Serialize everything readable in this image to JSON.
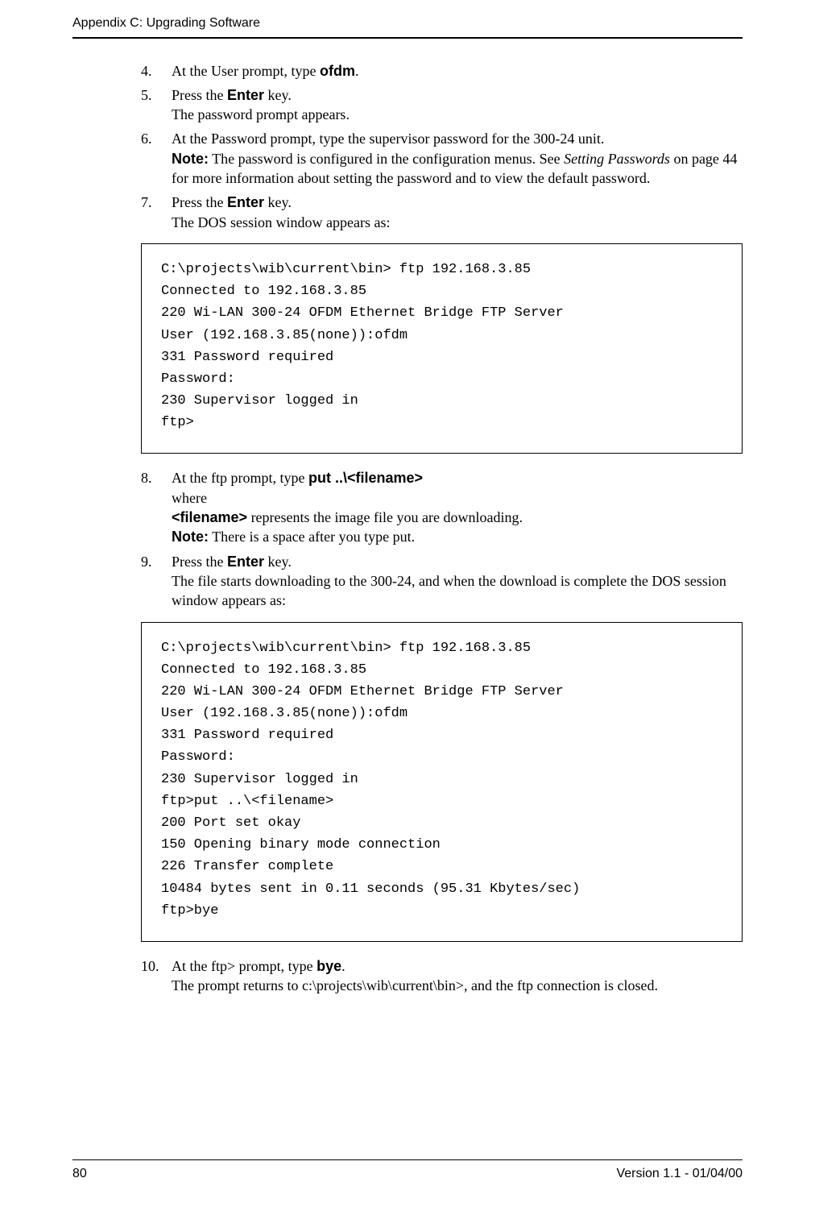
{
  "header": {
    "running": "Appendix C: Upgrading Software"
  },
  "steps": {
    "s4": {
      "pre": "At the User prompt, type ",
      "cmd": "ofdm",
      "post": "."
    },
    "s5": {
      "l1a": "Press the ",
      "l1b": "Enter",
      "l1c": " key.",
      "l2": "The password prompt appears."
    },
    "s6": {
      "l1": "At the Password prompt, type the supervisor password for the 300-24 unit.",
      "note_label": "Note:",
      "note_a": " The password is configured in the configuration menus. See ",
      "note_i": "Setting Passwords",
      "note_b": " on page 44 for more information about setting the password and to view the default password."
    },
    "s7": {
      "l1a": "Press the ",
      "l1b": "Enter",
      "l1c": " key.",
      "l2": "The DOS session window appears as:"
    },
    "s8": {
      "l1a": "At the ftp prompt, type ",
      "l1b": "put  ..\\<filename>",
      "l2": "where",
      "l3a": "<filename>",
      "l3b": " represents the image file you are downloading.",
      "note_label": "Note:",
      "note_a": " There is a space after you type put."
    },
    "s9": {
      "l1a": "Press the ",
      "l1b": "Enter",
      "l1c": " key.",
      "l2": "The file starts downloading to the 300-24, and when the download is complete the DOS session window appears as:"
    },
    "s10": {
      "num": "10.",
      "l1a": "At the ftp> prompt, type ",
      "l1b": "bye",
      "l1c": ".",
      "l2": "The prompt returns to c:\\projects\\wib\\current\\bin>, and the ftp connection is closed."
    }
  },
  "code1": "C:\\projects\\wib\\current\\bin> ftp 192.168.3.85\nConnected to 192.168.3.85\n220 Wi-LAN 300-24 OFDM Ethernet Bridge FTP Server\nUser (192.168.3.85(none)):ofdm\n331 Password required\nPassword:\n230 Supervisor logged in\nftp>",
  "code2": "C:\\projects\\wib\\current\\bin> ftp 192.168.3.85\nConnected to 192.168.3.85\n220 Wi-LAN 300-24 OFDM Ethernet Bridge FTP Server\nUser (192.168.3.85(none)):ofdm\n331 Password required\nPassword:\n230 Supervisor logged in\nftp>put ..\\<filename>\n200 Port set okay\n150 Opening binary mode connection\n226 Transfer complete\n10484 bytes sent in 0.11 seconds (95.31 Kbytes/sec)\nftp>bye",
  "footer": {
    "page": "80",
    "version": "Version 1.1 - 01/04/00"
  }
}
